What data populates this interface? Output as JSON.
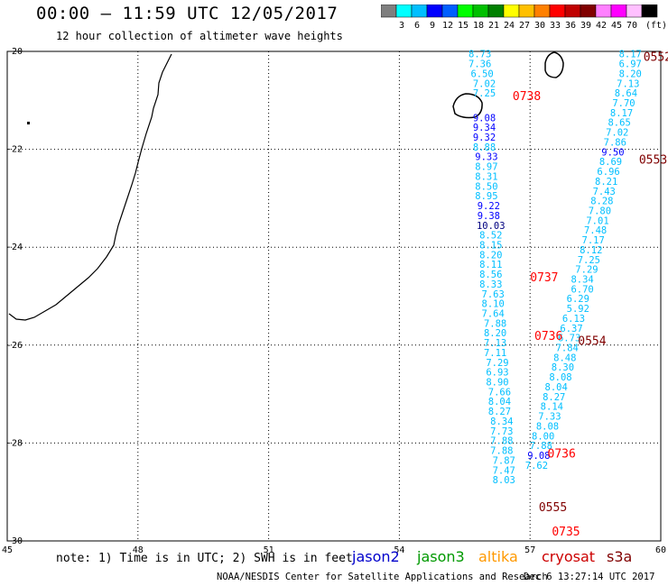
{
  "header": {
    "title": "00:00 – 11:59 UTC 12/05/2017",
    "subtitle": "12 hour collection of altimeter wave heights"
  },
  "scale": {
    "colors": [
      "#7f7f7f",
      "#00ffff",
      "#00bfff",
      "#0000ff",
      "#005fff",
      "#00ff00",
      "#00c000",
      "#008000",
      "#ffff00",
      "#ffc000",
      "#ff8000",
      "#ff0000",
      "#c00000",
      "#800000",
      "#ff80ff",
      "#ff00ff",
      "#ffc0ff",
      "#000000"
    ],
    "labels": [
      "3",
      "6",
      "9",
      "12",
      "15",
      "18",
      "21",
      "24",
      "27",
      "30",
      "33",
      "36",
      "39",
      "42",
      "45",
      "70"
    ],
    "unit": "(ft)"
  },
  "map": {
    "x_ticks": [
      "45",
      "48",
      "51",
      "54",
      "57",
      "60"
    ],
    "y_ticks": [
      "-20",
      "-22",
      "-24",
      "-26",
      "-28",
      "-30"
    ],
    "lon_range": [
      45,
      60
    ],
    "lat_range": [
      -20,
      -30
    ]
  },
  "pass_labels": [
    {
      "text": "0552",
      "lon": 59.6,
      "lat": -20.1,
      "color": "#800000"
    },
    {
      "text": "0738",
      "lon": 56.6,
      "lat": -20.9,
      "color": "#ff0000"
    },
    {
      "text": "0553",
      "lon": 59.5,
      "lat": -22.2,
      "color": "#800000"
    },
    {
      "text": "0737",
      "lon": 57.0,
      "lat": -24.6,
      "color": "#ff0000"
    },
    {
      "text": "0736",
      "lon": 57.1,
      "lat": -25.8,
      "color": "#ff0000"
    },
    {
      "text": "0554",
      "lon": 58.1,
      "lat": -25.9,
      "color": "#800000"
    },
    {
      "text": "0736",
      "lon": 57.4,
      "lat": -28.2,
      "color": "#ff0000"
    },
    {
      "text": "0555",
      "lon": 57.2,
      "lat": -29.3,
      "color": "#800000"
    },
    {
      "text": "0735",
      "lon": 57.5,
      "lat": -29.8,
      "color": "#ff0000"
    }
  ],
  "wave_heights": [
    {
      "v": "8.73",
      "lon": 55.85,
      "lat": -20.05,
      "c": "#00bfff"
    },
    {
      "v": "7.36",
      "lon": 55.85,
      "lat": -20.25,
      "c": "#00bfff"
    },
    {
      "v": "6.50",
      "lon": 55.9,
      "lat": -20.45,
      "c": "#00bfff"
    },
    {
      "v": "7.02",
      "lon": 55.95,
      "lat": -20.65,
      "c": "#00bfff"
    },
    {
      "v": "7.25",
      "lon": 55.95,
      "lat": -20.85,
      "c": "#00bfff"
    },
    {
      "v": "9.08",
      "lon": 55.95,
      "lat": -21.35,
      "c": "#0000ff"
    },
    {
      "v": "9.34",
      "lon": 55.95,
      "lat": -21.55,
      "c": "#0000ff"
    },
    {
      "v": "9.32",
      "lon": 55.95,
      "lat": -21.75,
      "c": "#0000ff"
    },
    {
      "v": "8.88",
      "lon": 55.95,
      "lat": -21.95,
      "c": "#00bfff"
    },
    {
      "v": "9.33",
      "lon": 56.0,
      "lat": -22.15,
      "c": "#0000ff"
    },
    {
      "v": "8.97",
      "lon": 56.0,
      "lat": -22.35,
      "c": "#00bfff"
    },
    {
      "v": "8.31",
      "lon": 56.0,
      "lat": -22.55,
      "c": "#00bfff"
    },
    {
      "v": "8.50",
      "lon": 56.0,
      "lat": -22.75,
      "c": "#00bfff"
    },
    {
      "v": "8.95",
      "lon": 56.0,
      "lat": -22.95,
      "c": "#00bfff"
    },
    {
      "v": "9.22",
      "lon": 56.05,
      "lat": -23.15,
      "c": "#0000ff"
    },
    {
      "v": "9.38",
      "lon": 56.05,
      "lat": -23.35,
      "c": "#0000ff"
    },
    {
      "v": "10.03",
      "lon": 56.1,
      "lat": -23.55,
      "c": "#000080"
    },
    {
      "v": "8.52",
      "lon": 56.1,
      "lat": -23.75,
      "c": "#00bfff"
    },
    {
      "v": "8.15",
      "lon": 56.1,
      "lat": -23.95,
      "c": "#00bfff"
    },
    {
      "v": "8.20",
      "lon": 56.1,
      "lat": -24.15,
      "c": "#00bfff"
    },
    {
      "v": "8.11",
      "lon": 56.1,
      "lat": -24.35,
      "c": "#00bfff"
    },
    {
      "v": "8.56",
      "lon": 56.1,
      "lat": -24.55,
      "c": "#00bfff"
    },
    {
      "v": "8.33",
      "lon": 56.1,
      "lat": -24.75,
      "c": "#00bfff"
    },
    {
      "v": "7.63",
      "lon": 56.15,
      "lat": -24.95,
      "c": "#00bfff"
    },
    {
      "v": "8.10",
      "lon": 56.15,
      "lat": -25.15,
      "c": "#00bfff"
    },
    {
      "v": "7.64",
      "lon": 56.15,
      "lat": -25.35,
      "c": "#00bfff"
    },
    {
      "v": "7.88",
      "lon": 56.2,
      "lat": -25.55,
      "c": "#00bfff"
    },
    {
      "v": "8.20",
      "lon": 56.2,
      "lat": -25.75,
      "c": "#00bfff"
    },
    {
      "v": "7.13",
      "lon": 56.2,
      "lat": -25.95,
      "c": "#00bfff"
    },
    {
      "v": "7.11",
      "lon": 56.2,
      "lat": -26.15,
      "c": "#00bfff"
    },
    {
      "v": "7.29",
      "lon": 56.25,
      "lat": -26.35,
      "c": "#00bfff"
    },
    {
      "v": "6.93",
      "lon": 56.25,
      "lat": -26.55,
      "c": "#00bfff"
    },
    {
      "v": "8.90",
      "lon": 56.25,
      "lat": -26.75,
      "c": "#00bfff"
    },
    {
      "v": "7.66",
      "lon": 56.3,
      "lat": -26.95,
      "c": "#00bfff"
    },
    {
      "v": "8.04",
      "lon": 56.3,
      "lat": -27.15,
      "c": "#00bfff"
    },
    {
      "v": "8.27",
      "lon": 56.3,
      "lat": -27.35,
      "c": "#00bfff"
    },
    {
      "v": "8.34",
      "lon": 56.35,
      "lat": -27.55,
      "c": "#00bfff"
    },
    {
      "v": "7.73",
      "lon": 56.35,
      "lat": -27.75,
      "c": "#00bfff"
    },
    {
      "v": "7.88",
      "lon": 56.35,
      "lat": -27.95,
      "c": "#00bfff"
    },
    {
      "v": "7.88",
      "lon": 56.35,
      "lat": -28.15,
      "c": "#00bfff"
    },
    {
      "v": "7.87",
      "lon": 56.4,
      "lat": -28.35,
      "c": "#00bfff"
    },
    {
      "v": "7.47",
      "lon": 56.4,
      "lat": -28.55,
      "c": "#00bfff"
    },
    {
      "v": "8.03",
      "lon": 56.4,
      "lat": -28.75,
      "c": "#00bfff"
    },
    {
      "v": "8.17",
      "lon": 59.3,
      "lat": -20.05,
      "c": "#00bfff"
    },
    {
      "v": "6.97",
      "lon": 59.3,
      "lat": -20.25,
      "c": "#00bfff"
    },
    {
      "v": "8.20",
      "lon": 59.3,
      "lat": -20.45,
      "c": "#00bfff"
    },
    {
      "v": "7.13",
      "lon": 59.25,
      "lat": -20.65,
      "c": "#00bfff"
    },
    {
      "v": "8.64",
      "lon": 59.2,
      "lat": -20.85,
      "c": "#00bfff"
    },
    {
      "v": "7.70",
      "lon": 59.15,
      "lat": -21.05,
      "c": "#00bfff"
    },
    {
      "v": "8.17",
      "lon": 59.1,
      "lat": -21.25,
      "c": "#00bfff"
    },
    {
      "v": "8.65",
      "lon": 59.05,
      "lat": -21.45,
      "c": "#00bfff"
    },
    {
      "v": "7.02",
      "lon": 59.0,
      "lat": -21.65,
      "c": "#00bfff"
    },
    {
      "v": "7.86",
      "lon": 58.95,
      "lat": -21.85,
      "c": "#00bfff"
    },
    {
      "v": "9.50",
      "lon": 58.9,
      "lat": -22.05,
      "c": "#0000ff"
    },
    {
      "v": "8.69",
      "lon": 58.85,
      "lat": -22.25,
      "c": "#00bfff"
    },
    {
      "v": "6.96",
      "lon": 58.8,
      "lat": -22.45,
      "c": "#00bfff"
    },
    {
      "v": "8.21",
      "lon": 58.75,
      "lat": -22.65,
      "c": "#00bfff"
    },
    {
      "v": "7.43",
      "lon": 58.7,
      "lat": -22.85,
      "c": "#00bfff"
    },
    {
      "v": "8.28",
      "lon": 58.65,
      "lat": -23.05,
      "c": "#00bfff"
    },
    {
      "v": "7.80",
      "lon": 58.6,
      "lat": -23.25,
      "c": "#00bfff"
    },
    {
      "v": "7.01",
      "lon": 58.55,
      "lat": -23.45,
      "c": "#00bfff"
    },
    {
      "v": "7.48",
      "lon": 58.5,
      "lat": -23.65,
      "c": "#00bfff"
    },
    {
      "v": "7.17",
      "lon": 58.45,
      "lat": -23.85,
      "c": "#00bfff"
    },
    {
      "v": "8.12",
      "lon": 58.4,
      "lat": -24.05,
      "c": "#00bfff"
    },
    {
      "v": "7.25",
      "lon": 58.35,
      "lat": -24.25,
      "c": "#00bfff"
    },
    {
      "v": "7.29",
      "lon": 58.3,
      "lat": -24.45,
      "c": "#00bfff"
    },
    {
      "v": "8.34",
      "lon": 58.2,
      "lat": -24.65,
      "c": "#00bfff"
    },
    {
      "v": "6.70",
      "lon": 58.2,
      "lat": -24.85,
      "c": "#00bfff"
    },
    {
      "v": "6.29",
      "lon": 58.1,
      "lat": -25.05,
      "c": "#00bfff"
    },
    {
      "v": "5.92",
      "lon": 58.1,
      "lat": -25.25,
      "c": "#00bfff"
    },
    {
      "v": "6.13",
      "lon": 58.0,
      "lat": -25.45,
      "c": "#00bfff"
    },
    {
      "v": "6.37",
      "lon": 57.95,
      "lat": -25.65,
      "c": "#00bfff"
    },
    {
      "v": "6.73",
      "lon": 57.9,
      "lat": -25.85,
      "c": "#00bfff"
    },
    {
      "v": "7.84",
      "lon": 57.85,
      "lat": -26.05,
      "c": "#00bfff"
    },
    {
      "v": "8.48",
      "lon": 57.8,
      "lat": -26.25,
      "c": "#00bfff"
    },
    {
      "v": "8.30",
      "lon": 57.75,
      "lat": -26.45,
      "c": "#00bfff"
    },
    {
      "v": "8.08",
      "lon": 57.7,
      "lat": -26.65,
      "c": "#00bfff"
    },
    {
      "v": "8.04",
      "lon": 57.6,
      "lat": -26.85,
      "c": "#00bfff"
    },
    {
      "v": "8.27",
      "lon": 57.55,
      "lat": -27.05,
      "c": "#00bfff"
    },
    {
      "v": "8.14",
      "lon": 57.5,
      "lat": -27.25,
      "c": "#00bfff"
    },
    {
      "v": "7.33",
      "lon": 57.45,
      "lat": -27.45,
      "c": "#00bfff"
    },
    {
      "v": "8.08",
      "lon": 57.4,
      "lat": -27.65,
      "c": "#00bfff"
    },
    {
      "v": "8.00",
      "lon": 57.3,
      "lat": -27.85,
      "c": "#00bfff"
    },
    {
      "v": "7.88",
      "lon": 57.25,
      "lat": -28.05,
      "c": "#00bfff"
    },
    {
      "v": "9.08",
      "lon": 57.2,
      "lat": -28.25,
      "c": "#0000ff"
    },
    {
      "v": "7.62",
      "lon": 57.15,
      "lat": -28.45,
      "c": "#00bfff"
    }
  ],
  "footer": {
    "note": "note: 1) Time is in UTC; 2) SWH is in feet",
    "satellites": [
      {
        "name": "jason2",
        "color": "#0000cc"
      },
      {
        "name": "jason3",
        "color": "#009900"
      },
      {
        "name": "altika",
        "color": "#ff9900"
      },
      {
        "name": "cryosat",
        "color": "#cc0000"
      },
      {
        "name": "s3a",
        "color": "#800000"
      }
    ],
    "credit": "NOAA/NESDIS Center for Satellite Applications and Research",
    "date": "Dec  6 13:27:14 UTC 2017"
  }
}
